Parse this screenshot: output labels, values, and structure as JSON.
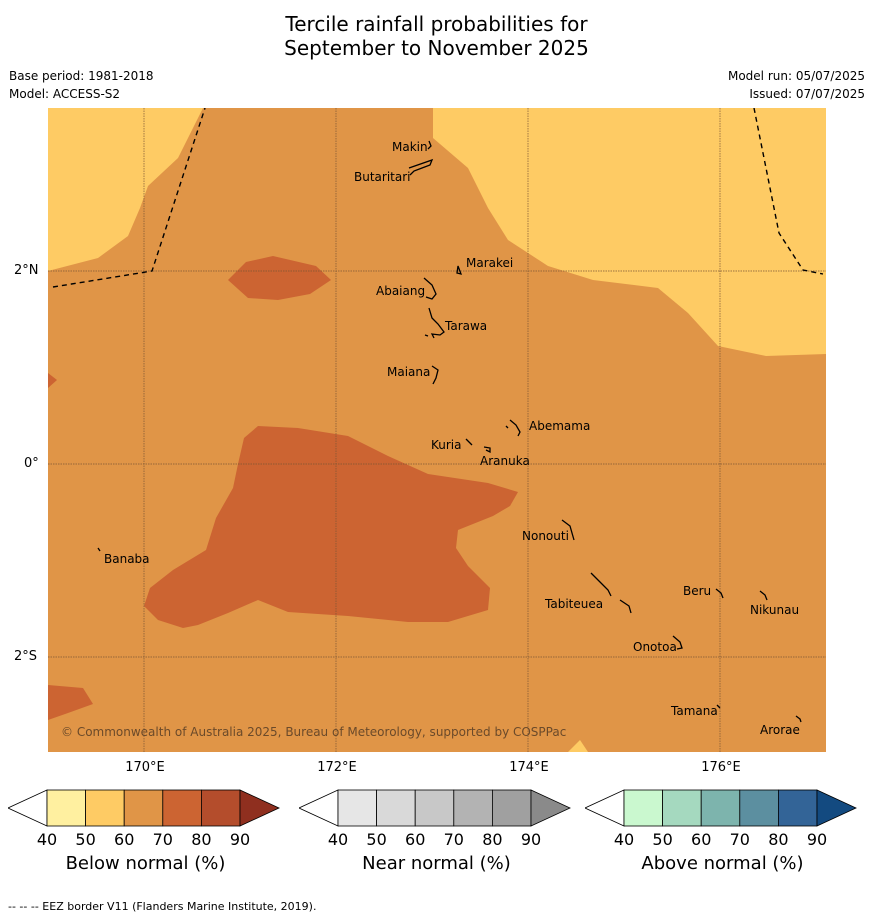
{
  "title_line1": "Tercile rainfall probabilities for",
  "title_line2": "September to November 2025",
  "base_period": "Base period: 1981-2018",
  "model": "Model: ACCESS-S2",
  "model_run": "Model run: 05/07/2025",
  "issued": "Issued: 07/07/2025",
  "lat_labels": [
    "2°N",
    "0°",
    "2°S"
  ],
  "lon_labels": [
    "170°E",
    "172°E",
    "174°E",
    "176°E"
  ],
  "places": [
    "Makin",
    "Butaritari",
    "Marakei",
    "Abaiang",
    "Tarawa",
    "Maiana",
    "Abemama",
    "Kuria",
    "Aranuka",
    "Nonouti",
    "Banaba",
    "Tabiteuea",
    "Beru",
    "Nikunau",
    "Onotoa",
    "Tamana",
    "Arorae"
  ],
  "credit": "© Commonwealth of Australia 2025, Bureau of Meteorology, supported by COSPPac",
  "legend": {
    "ticks": [
      "40",
      "50",
      "60",
      "70",
      "80",
      "90"
    ],
    "below": {
      "title": "Below normal (%)",
      "colors": [
        "#fff0a0",
        "#fecb64",
        "#e09547",
        "#cc6432",
        "#b44d2c",
        "#8f2f1f"
      ]
    },
    "near": {
      "title": "Near normal (%)",
      "colors": [
        "#e6e6e6",
        "#d9d9d9",
        "#c8c8c8",
        "#b3b3b3",
        "#a0a0a0",
        "#8a8a8a"
      ]
    },
    "above": {
      "title": "Above normal (%)",
      "colors": [
        "#caf8cf",
        "#a5d9bf",
        "#7db4ad",
        "#5c8fa0",
        "#336497",
        "#134a80"
      ]
    }
  },
  "footnote": "--  --  -- EEZ border V11 (Flanders Marine Institute, 2019)."
}
